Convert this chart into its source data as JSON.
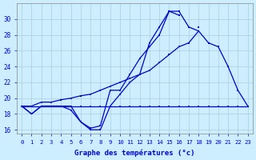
{
  "xlabel": "Graphe des températures (°c)",
  "hours": [
    0,
    1,
    2,
    3,
    4,
    5,
    6,
    7,
    8,
    9,
    10,
    11,
    12,
    13,
    14,
    15,
    16,
    17,
    18,
    19,
    20,
    21,
    22,
    23
  ],
  "line1": [
    19,
    18,
    19,
    19,
    19,
    19,
    17,
    16,
    16,
    19,
    20.5,
    22,
    23,
    27,
    29,
    31,
    31,
    29,
    28.5,
    null,
    null,
    null,
    null,
    null
  ],
  "line2": [
    19,
    18,
    19,
    19,
    19,
    18.5,
    17,
    16.2,
    16.5,
    21,
    21,
    23,
    25,
    26.5,
    28,
    31,
    30.5,
    null,
    29,
    null,
    26.5,
    null,
    21,
    null
  ],
  "line3": [
    19,
    19,
    19,
    19,
    19,
    19,
    19,
    19,
    19,
    19,
    19,
    19,
    19,
    19,
    19,
    19,
    19,
    19,
    19,
    19,
    19,
    19,
    19,
    19
  ],
  "line4": [
    19,
    19,
    19.5,
    19.5,
    19.8,
    20,
    20.3,
    20.5,
    21,
    21.5,
    22,
    22.5,
    23,
    23.5,
    24.5,
    25.5,
    26.5,
    27,
    28.5,
    27,
    26.5,
    24,
    21,
    19
  ],
  "ylim": [
    15.5,
    32
  ],
  "yticks": [
    16,
    18,
    20,
    22,
    24,
    26,
    28,
    30
  ],
  "color": "#0000cc",
  "bg_color": "#cceeff",
  "grid_color": "#aaccdd"
}
